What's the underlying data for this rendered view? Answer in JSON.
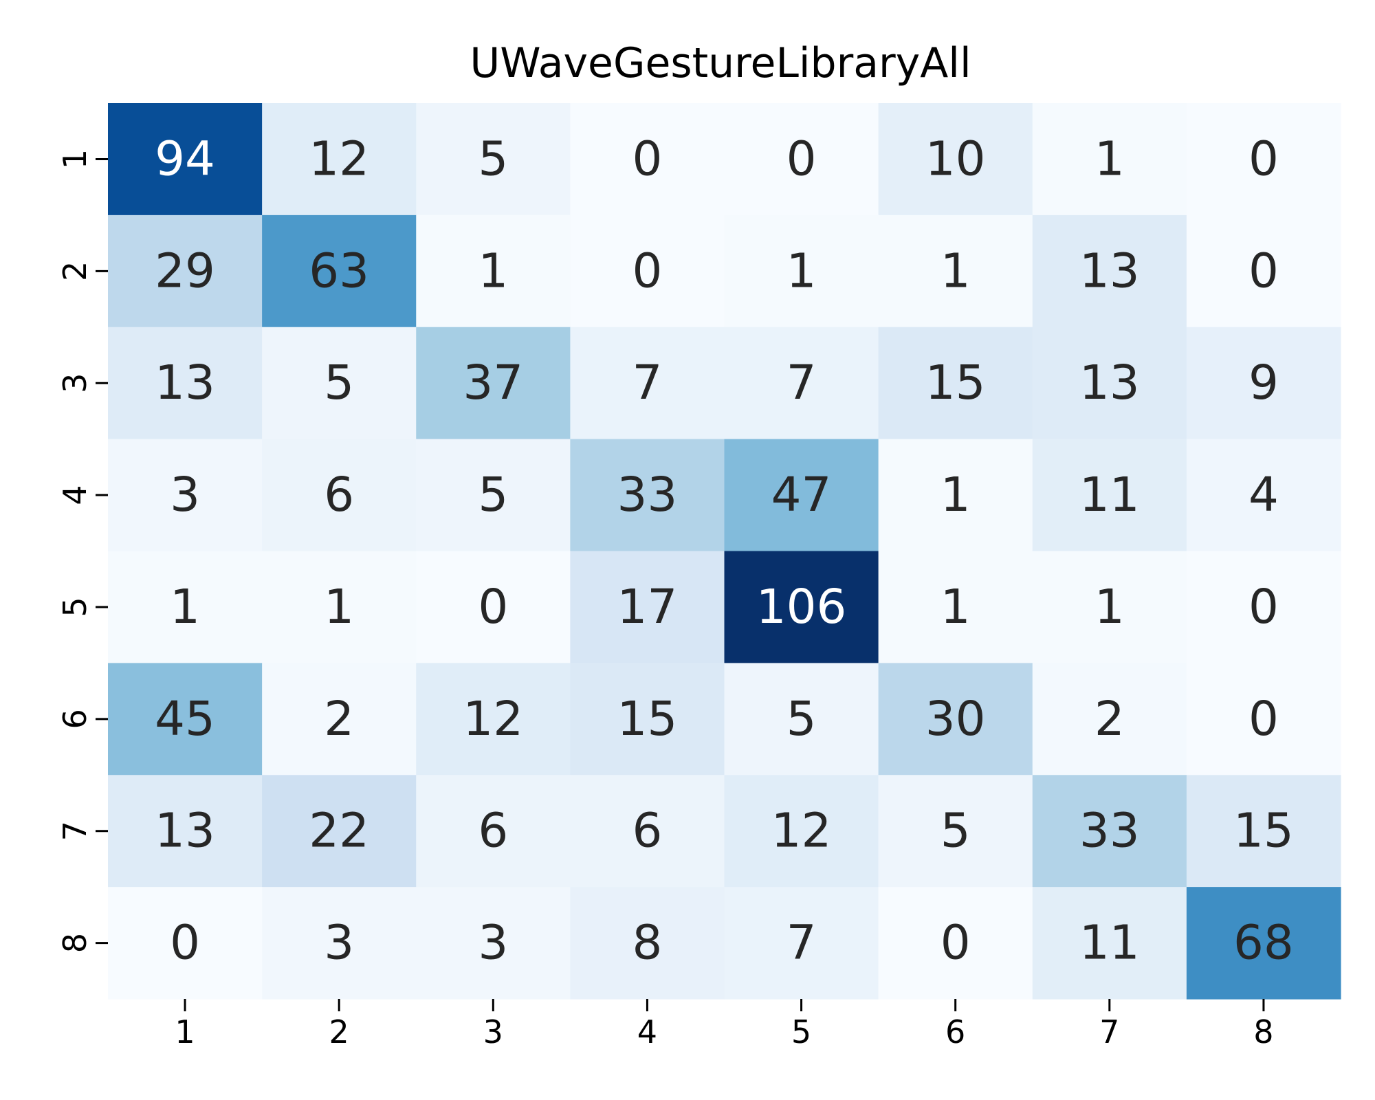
{
  "chart_data": {
    "type": "heatmap",
    "title": "UWaveGestureLibraryAll",
    "xlabel": "",
    "ylabel": "",
    "x_categories": [
      "1",
      "2",
      "3",
      "4",
      "5",
      "6",
      "7",
      "8"
    ],
    "y_categories": [
      "1",
      "2",
      "3",
      "4",
      "5",
      "6",
      "7",
      "8"
    ],
    "values": [
      [
        94,
        12,
        5,
        0,
        0,
        10,
        1,
        0
      ],
      [
        29,
        63,
        1,
        0,
        1,
        1,
        13,
        0
      ],
      [
        13,
        5,
        37,
        7,
        7,
        15,
        13,
        9
      ],
      [
        3,
        6,
        5,
        33,
        47,
        1,
        11,
        4
      ],
      [
        1,
        1,
        0,
        17,
        106,
        1,
        1,
        0
      ],
      [
        45,
        2,
        12,
        15,
        5,
        30,
        2,
        0
      ],
      [
        13,
        22,
        6,
        6,
        12,
        5,
        33,
        15
      ],
      [
        0,
        3,
        3,
        8,
        7,
        0,
        11,
        68
      ]
    ],
    "colormap": "Blues",
    "value_range": [
      0,
      106
    ],
    "colorbar": false,
    "annotations": true
  }
}
